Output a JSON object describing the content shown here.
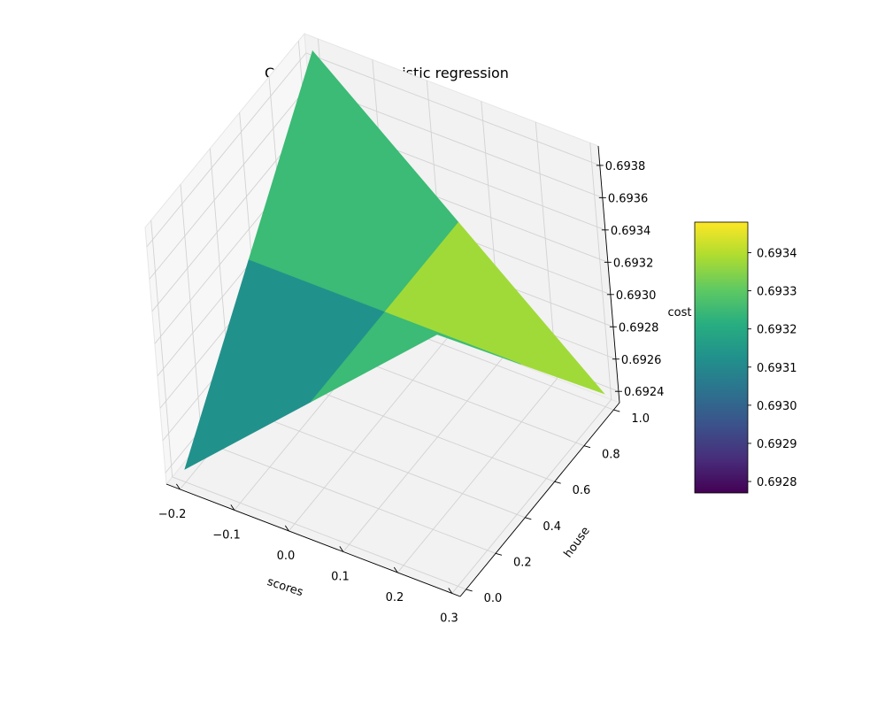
{
  "chart_data": {
    "type": "surface-3d",
    "title": "Cost function in logistic regression",
    "x_axis": {
      "label": "scores",
      "ticks": [
        "−0.2",
        "−0.1",
        "0.0",
        "0.1",
        "0.2",
        "0.3"
      ],
      "tick_values": [
        -0.2,
        -0.1,
        0.0,
        0.1,
        0.2,
        0.3
      ]
    },
    "y_axis": {
      "label": "house",
      "ticks": [
        "0.0",
        "0.2",
        "0.4",
        "0.6",
        "0.8",
        "1.0"
      ],
      "tick_values": [
        0.0,
        0.2,
        0.4,
        0.6,
        0.8,
        1.0
      ]
    },
    "z_axis": {
      "label": "cost",
      "ticks": [
        "0.6924",
        "0.6926",
        "0.6928",
        "0.6930",
        "0.6932",
        "0.6934",
        "0.6936",
        "0.6938"
      ],
      "tick_values": [
        0.6924,
        0.6926,
        0.6928,
        0.693,
        0.6932,
        0.6934,
        0.6936,
        0.6938
      ]
    },
    "colorbar": {
      "colormap": "viridis",
      "range": [
        0.69277,
        0.69348
      ],
      "ticks": [
        "0.6928",
        "0.6929",
        "0.6930",
        "0.6931",
        "0.6932",
        "0.6933",
        "0.6934"
      ],
      "tick_values": [
        0.6928,
        0.6929,
        0.693,
        0.6931,
        0.6932,
        0.6933,
        0.6934
      ]
    },
    "surface": {
      "x": [
        -0.2,
        0.05,
        0.3
      ],
      "y": [
        0.0,
        0.5,
        1.0
      ],
      "z": [
        [
          0.69241,
          0.69315,
          0.69389
        ],
        [
          0.69315,
          0.69315,
          0.69315
        ],
        [
          0.69389,
          0.69315,
          0.69241
        ]
      ],
      "face_colors": [
        [
          "#21918c",
          "#3bbb75"
        ],
        [
          "#3bbb75",
          "#a0da39"
        ]
      ]
    },
    "pane_color": "#f2f2f2",
    "grid": true
  }
}
